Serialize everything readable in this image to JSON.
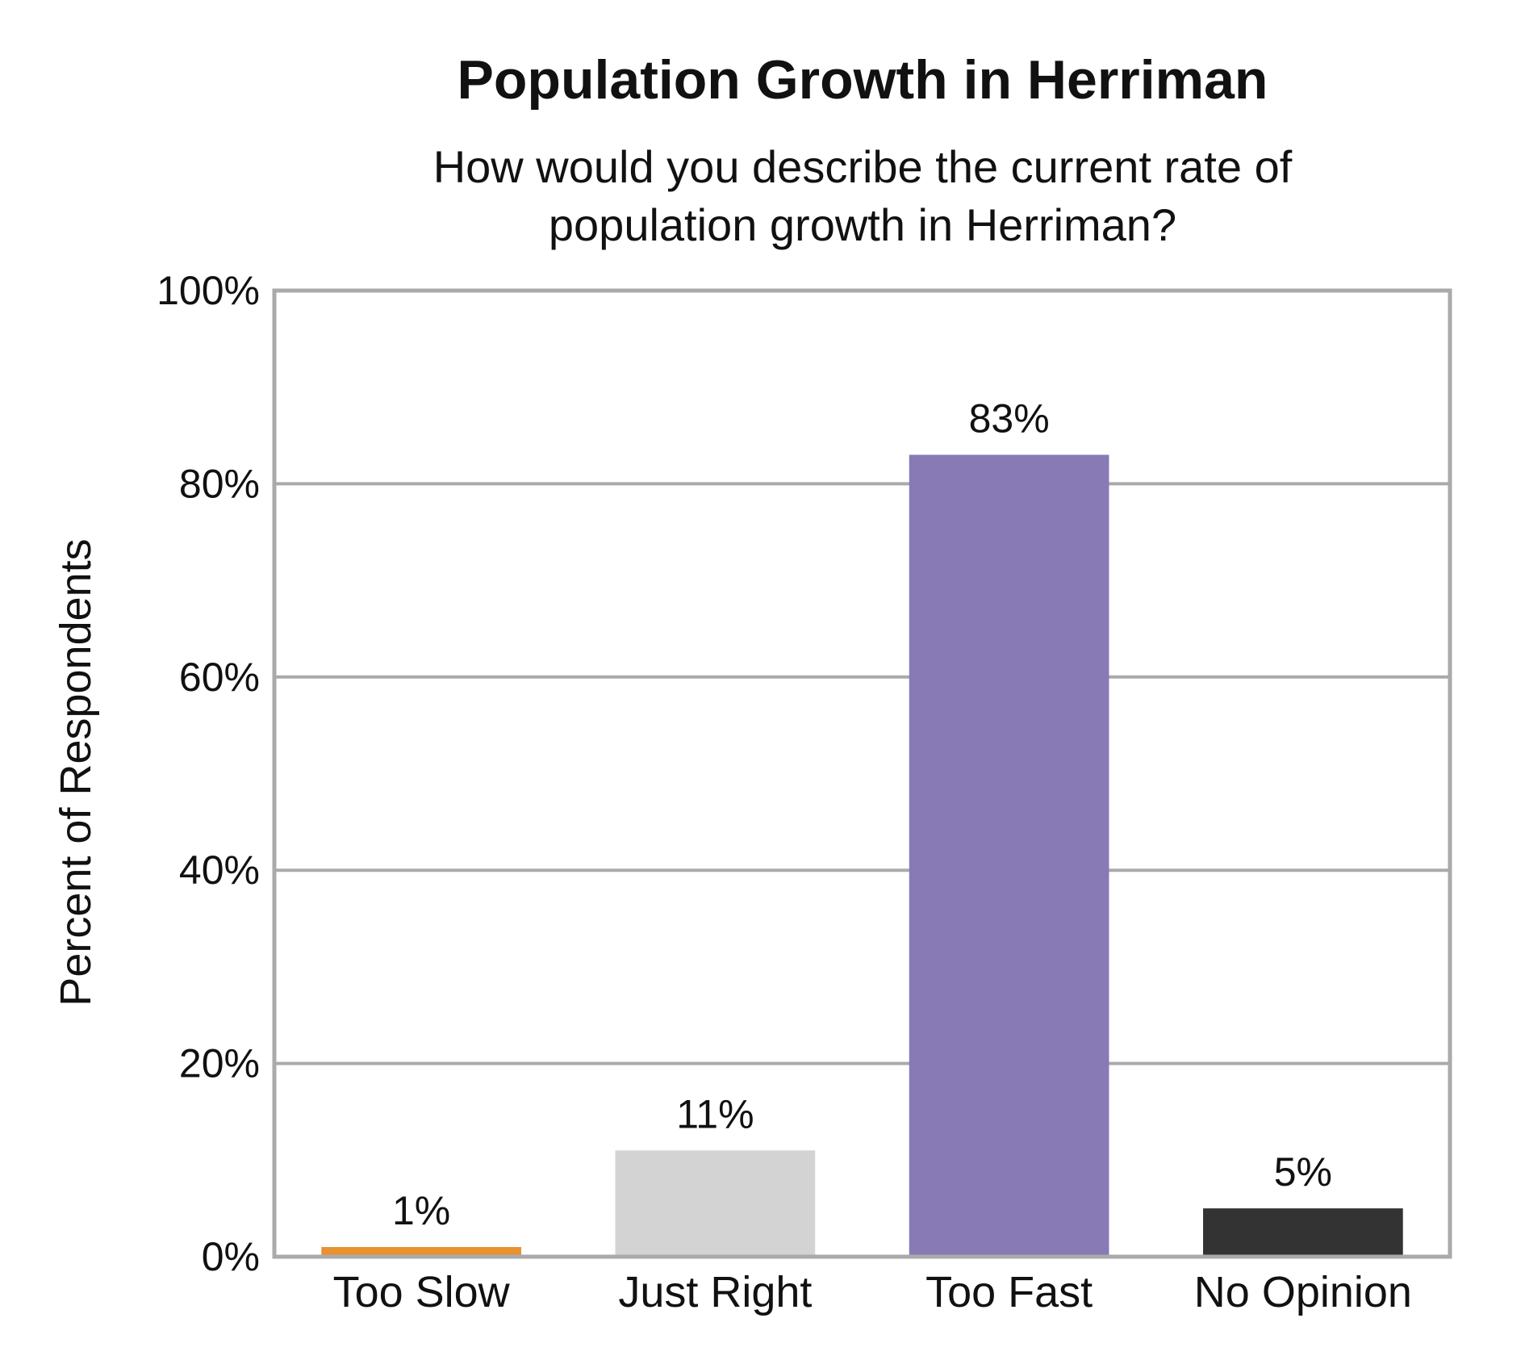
{
  "chart_data": {
    "type": "bar",
    "title": "Population Growth in Herriman",
    "subtitle_lines": [
      "How would you describe the current rate of",
      "population growth in Herriman?"
    ],
    "xlabel": "",
    "ylabel": "Percent of Respondents",
    "ylim": [
      0,
      100
    ],
    "yticks": [
      0,
      20,
      40,
      60,
      80,
      100
    ],
    "ytick_labels": [
      "0%",
      "20%",
      "40%",
      "60%",
      "80%",
      "100%"
    ],
    "categories": [
      "Too Slow",
      "Just Right",
      "Too Fast",
      "No Opinion"
    ],
    "values": [
      1,
      11,
      83,
      5
    ],
    "value_labels": [
      "1%",
      "11%",
      "83%",
      "5%"
    ],
    "colors": [
      "#E8912F",
      "#D3D3D3",
      "#877AB5",
      "#333333"
    ],
    "grid": true,
    "legend": "none"
  }
}
